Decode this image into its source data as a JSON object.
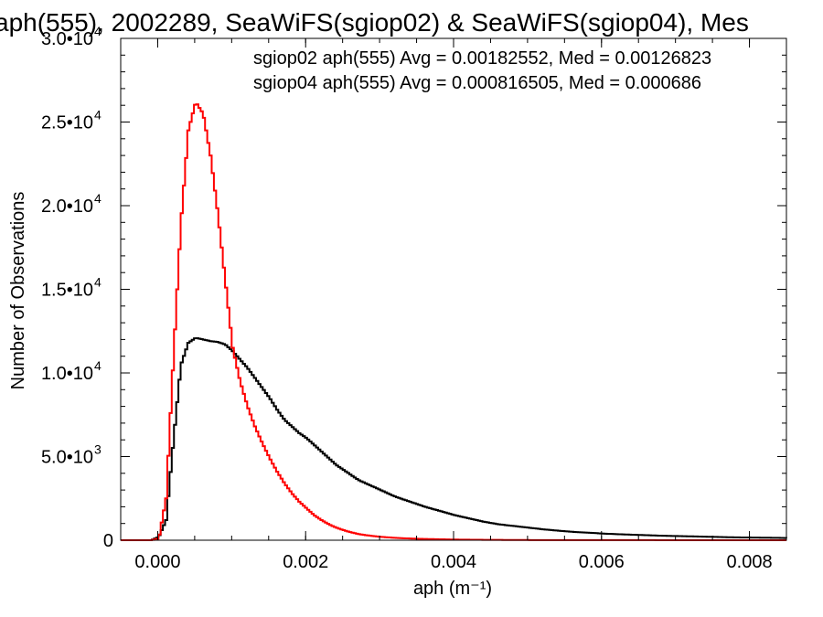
{
  "chart_data": {
    "type": "line",
    "title": "aph(555), 2002289, SeaWiFS(sgiop02) & SeaWiFS(sgiop04), Mes",
    "xlabel": "aph (m⁻¹)",
    "ylabel": "Number of Observations",
    "xlim": [
      -0.0005,
      0.0085
    ],
    "ylim": [
      0,
      30000
    ],
    "x_ticks": [
      {
        "value": 0.0,
        "label": "0.000"
      },
      {
        "value": 0.002,
        "label": "0.002"
      },
      {
        "value": 0.004,
        "label": "0.004"
      },
      {
        "value": 0.006,
        "label": "0.006"
      },
      {
        "value": 0.008,
        "label": "0.008"
      }
    ],
    "y_ticks": [
      {
        "value": 0,
        "mant": "0",
        "exp": ""
      },
      {
        "value": 5000,
        "mant": "5.0•10",
        "exp": "3"
      },
      {
        "value": 10000,
        "mant": "1.0•10",
        "exp": "4"
      },
      {
        "value": 15000,
        "mant": "1.5•10",
        "exp": "4"
      },
      {
        "value": 20000,
        "mant": "2.0•10",
        "exp": "4"
      },
      {
        "value": 25000,
        "mant": "2.5•10",
        "exp": "4"
      },
      {
        "value": 30000,
        "mant": "3.0•10",
        "exp": "4"
      }
    ],
    "grid": false,
    "legend_position": "top-right",
    "series": [
      {
        "legend": "sgiop02 aph(555) Avg = 0.00182552, Med = 0.00126823",
        "color": "#000000",
        "points": [
          [
            -0.0001,
            0
          ],
          [
            0.0,
            200
          ],
          [
            0.0001,
            1200
          ],
          [
            0.0002,
            6000
          ],
          [
            0.0003,
            10500
          ],
          [
            0.0004,
            11800
          ],
          [
            0.0005,
            12100
          ],
          [
            0.0006,
            12000
          ],
          [
            0.0007,
            11900
          ],
          [
            0.0008,
            11850
          ],
          [
            0.0009,
            11700
          ],
          [
            0.001,
            11300
          ],
          [
            0.0011,
            10800
          ],
          [
            0.0012,
            10300
          ],
          [
            0.0013,
            9700
          ],
          [
            0.0014,
            9100
          ],
          [
            0.0015,
            8500
          ],
          [
            0.0016,
            7800
          ],
          [
            0.0017,
            7200
          ],
          [
            0.0018,
            6800
          ],
          [
            0.0019,
            6400
          ],
          [
            0.002,
            6100
          ],
          [
            0.0021,
            5700
          ],
          [
            0.0022,
            5300
          ],
          [
            0.0023,
            4900
          ],
          [
            0.0024,
            4500
          ],
          [
            0.0025,
            4200
          ],
          [
            0.0026,
            3900
          ],
          [
            0.0027,
            3600
          ],
          [
            0.0028,
            3400
          ],
          [
            0.0029,
            3200
          ],
          [
            0.003,
            3000
          ],
          [
            0.0032,
            2600
          ],
          [
            0.0034,
            2300
          ],
          [
            0.0036,
            2000
          ],
          [
            0.0038,
            1750
          ],
          [
            0.004,
            1500
          ],
          [
            0.0042,
            1300
          ],
          [
            0.0044,
            1100
          ],
          [
            0.0046,
            950
          ],
          [
            0.0048,
            850
          ],
          [
            0.005,
            750
          ],
          [
            0.0052,
            650
          ],
          [
            0.0054,
            570
          ],
          [
            0.0056,
            500
          ],
          [
            0.0058,
            450
          ],
          [
            0.006,
            400
          ],
          [
            0.0062,
            360
          ],
          [
            0.0064,
            330
          ],
          [
            0.0066,
            300
          ],
          [
            0.0068,
            270
          ],
          [
            0.007,
            250
          ],
          [
            0.0072,
            230
          ],
          [
            0.0074,
            210
          ],
          [
            0.0076,
            190
          ],
          [
            0.0078,
            170
          ],
          [
            0.008,
            160
          ],
          [
            0.0082,
            150
          ],
          [
            0.0084,
            140
          ],
          [
            0.0085,
            130
          ]
        ]
      },
      {
        "legend": "sgiop04 aph(555) Avg = 0.000816505, Med = 0.000686",
        "color": "#ff0000",
        "points": [
          [
            -0.0001,
            0
          ],
          [
            0.0,
            100
          ],
          [
            0.0001,
            2500
          ],
          [
            0.0002,
            11000
          ],
          [
            0.0003,
            19000
          ],
          [
            0.0004,
            24500
          ],
          [
            0.0005,
            26200
          ],
          [
            0.0006,
            25500
          ],
          [
            0.0007,
            23000
          ],
          [
            0.0008,
            19500
          ],
          [
            0.0009,
            15500
          ],
          [
            0.001,
            11500
          ],
          [
            0.0011,
            9500
          ],
          [
            0.0012,
            8000
          ],
          [
            0.0013,
            6800
          ],
          [
            0.0014,
            5800
          ],
          [
            0.0015,
            4900
          ],
          [
            0.0016,
            4100
          ],
          [
            0.0017,
            3400
          ],
          [
            0.0018,
            2800
          ],
          [
            0.0019,
            2300
          ],
          [
            0.002,
            1900
          ],
          [
            0.0021,
            1500
          ],
          [
            0.0022,
            1200
          ],
          [
            0.0023,
            950
          ],
          [
            0.0024,
            750
          ],
          [
            0.0025,
            600
          ],
          [
            0.0026,
            470
          ],
          [
            0.0027,
            370
          ],
          [
            0.0028,
            300
          ],
          [
            0.0029,
            250
          ],
          [
            0.003,
            200
          ],
          [
            0.0032,
            140
          ],
          [
            0.0034,
            100
          ],
          [
            0.0036,
            75
          ],
          [
            0.0038,
            55
          ],
          [
            0.004,
            40
          ],
          [
            0.0042,
            30
          ],
          [
            0.0045,
            20
          ],
          [
            0.005,
            10
          ],
          [
            0.006,
            5
          ],
          [
            0.007,
            3
          ],
          [
            0.0085,
            2
          ]
        ]
      }
    ]
  }
}
